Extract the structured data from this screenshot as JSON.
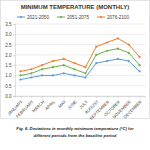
{
  "chart_data": {
    "type": "line",
    "title": "MINIMUM TEMPERATURE (MONTHLY)",
    "caption": [
      "Fig. 6. Deviations in monthly minimum temperature (°C) for",
      "different periods from the baseline period"
    ],
    "categories": [
      "JANUARY",
      "FEBRUARY",
      "MARCH",
      "APRIL",
      "MAY",
      "JUNE",
      "JULY",
      "AUGUST",
      "SEPTEMBER",
      "OCTOBER",
      "NOVEMBER",
      "DECEMBER"
    ],
    "series": [
      {
        "name": "2021-2050",
        "color": "#5b9bd5",
        "values": [
          0.8,
          0.9,
          1.0,
          1.0,
          1.1,
          1.0,
          0.9,
          1.6,
          1.7,
          1.8,
          1.7,
          1.2
        ]
      },
      {
        "name": "2051-2075",
        "color": "#70ad47",
        "values": [
          1.0,
          1.1,
          1.3,
          1.4,
          1.5,
          1.3,
          1.1,
          2.0,
          2.2,
          2.3,
          2.1,
          1.5
        ]
      },
      {
        "name": "2076-2100",
        "color": "#ed7d31",
        "values": [
          1.2,
          1.3,
          1.5,
          1.7,
          1.8,
          1.6,
          1.4,
          2.4,
          2.6,
          2.8,
          2.5,
          1.9
        ]
      }
    ],
    "ylim": [
      0,
      3.5
    ],
    "yticks": [
      {
        "value": 0,
        "label": "0.0"
      },
      0.5,
      {
        "value": 1,
        "label": "1.0"
      },
      1.5,
      {
        "value": 2,
        "label": "2.0"
      },
      2.5,
      {
        "value": 3,
        "label": "3.0"
      },
      3.5
    ],
    "grid": true,
    "legend": "top",
    "marker": "circle"
  }
}
